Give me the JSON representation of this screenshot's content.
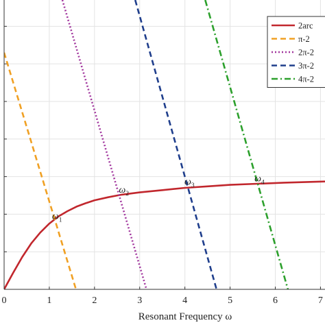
{
  "chart_data": {
    "type": "line",
    "title": "",
    "xlabel": "Resonant Frequency ω",
    "ylabel": "",
    "xlim": [
      0,
      7.1
    ],
    "ylim": [
      0,
      7.7
    ],
    "x_ticks": [
      "0",
      "1",
      "2",
      "3",
      "4",
      "5",
      "6",
      "7"
    ],
    "grid": true,
    "legend_position": "top-right",
    "series": [
      {
        "name": "2arc",
        "style": "solid",
        "color": "#c1272d",
        "x": [
          0,
          0.2,
          0.4,
          0.6,
          0.8,
          1.0,
          1.2,
          1.4,
          1.6,
          1.8,
          2.0,
          2.3,
          2.6,
          3.0,
          3.5,
          4.0,
          4.5,
          5.0,
          5.6,
          6.2,
          7.1
        ],
        "y": [
          0,
          0.44,
          0.86,
          1.22,
          1.51,
          1.75,
          1.94,
          2.08,
          2.2,
          2.29,
          2.37,
          2.45,
          2.52,
          2.58,
          2.64,
          2.7,
          2.74,
          2.78,
          2.81,
          2.84,
          2.87
        ]
      },
      {
        "name": "π-2",
        "style": "dashed",
        "color": "#f0a023",
        "x": [
          0,
          1.59
        ],
        "y": [
          6.3,
          0
        ]
      },
      {
        "name": "2π-2",
        "style": "dotted",
        "color": "#a2379e",
        "x": [
          1.29,
          3.15
        ],
        "y": [
          7.7,
          0
        ]
      },
      {
        "name": "3π-2",
        "style": "dashed",
        "color": "#1f3e8c",
        "x": [
          2.9,
          4.7
        ],
        "y": [
          7.7,
          0
        ]
      },
      {
        "name": "4π-2",
        "style": "dash-dot",
        "color": "#2ca02c",
        "x": [
          4.45,
          6.28
        ],
        "y": [
          7.7,
          0
        ]
      }
    ],
    "annotations": [
      {
        "symbol": "ω",
        "sub": "1",
        "x": 1.12,
        "y": 1.8
      },
      {
        "symbol": "ω",
        "sub": "2",
        "x": 2.6,
        "y": 2.5
      },
      {
        "symbol": "ω",
        "sub": "3",
        "x": 4.05,
        "y": 2.72
      },
      {
        "symbol": "ω",
        "sub": "4",
        "x": 5.6,
        "y": 2.8
      }
    ]
  }
}
